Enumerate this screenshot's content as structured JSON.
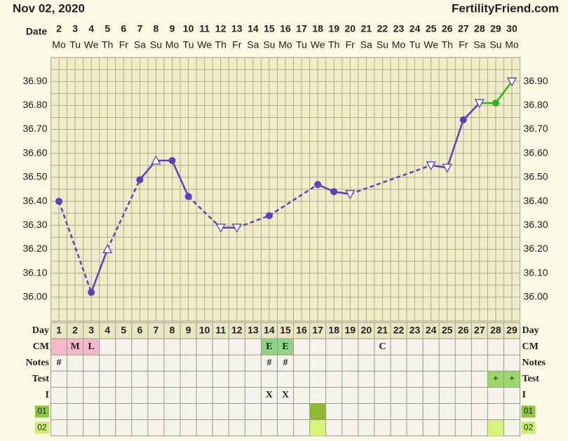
{
  "header": {
    "date": "Nov 02, 2020",
    "site": "FertilityFriend.com"
  },
  "chart_data": {
    "type": "line",
    "x_label": "Date",
    "categories": [
      "2",
      "3",
      "4",
      "5",
      "6",
      "7",
      "8",
      "9",
      "10",
      "11",
      "12",
      "13",
      "14",
      "15",
      "16",
      "17",
      "18",
      "19",
      "20",
      "21",
      "22",
      "23",
      "24",
      "25",
      "26",
      "27",
      "28",
      "29",
      "30"
    ],
    "weekdays": [
      "Mo",
      "Tu",
      "We",
      "Th",
      "Fr",
      "Sa",
      "Su",
      "Mo",
      "Tu",
      "We",
      "Th",
      "Fr",
      "Sa",
      "Su",
      "Mo",
      "Tu",
      "We",
      "Th",
      "Fr",
      "Sa",
      "Su",
      "Mo",
      "Tu",
      "We",
      "Th",
      "Fr",
      "Sa",
      "Su",
      "Mo"
    ],
    "ylim": [
      35.9,
      37.0
    ],
    "yticks": [
      {
        "value": 36.0,
        "label": "36.00"
      },
      {
        "value": 36.1,
        "label": "36.10"
      },
      {
        "value": 36.2,
        "label": "36.20"
      },
      {
        "value": 36.3,
        "label": "36.30"
      },
      {
        "value": 36.4,
        "label": "36.40"
      },
      {
        "value": 36.5,
        "label": "36.50"
      },
      {
        "value": 36.6,
        "label": "36.60"
      },
      {
        "value": 36.7,
        "label": "36.70"
      },
      {
        "value": 36.8,
        "label": "36.80"
      },
      {
        "value": 36.9,
        "label": "36.90"
      }
    ],
    "grid": true,
    "series": [
      {
        "color": "#5b3fc4",
        "values": [
          36.4,
          null,
          36.02,
          36.2,
          null,
          36.49,
          36.57,
          36.57,
          36.42,
          null,
          36.29,
          36.29,
          null,
          36.34,
          null,
          null,
          36.47,
          36.44,
          36.43,
          null,
          null,
          null,
          null,
          36.55,
          36.54,
          36.74,
          36.81,
          36.81,
          36.9
        ],
        "markers": [
          "circle",
          null,
          "circle",
          "triangle-up",
          null,
          "circle",
          "triangle-up",
          "circle",
          "circle",
          null,
          "triangle-down",
          "triangle-down",
          null,
          "circle",
          null,
          null,
          "circle",
          "circle",
          "triangle-down",
          null,
          null,
          null,
          null,
          "triangle-down",
          "triangle-down",
          "circle",
          "triangle-down",
          "circle",
          "triangle-down"
        ],
        "point_colors": [
          "#5b3fc4",
          null,
          "#5b3fc4",
          "#5b3fc4",
          null,
          "#5b3fc4",
          "#5b3fc4",
          "#5b3fc4",
          "#5b3fc4",
          null,
          "#5b3fc4",
          "#5b3fc4",
          null,
          "#5b3fc4",
          null,
          null,
          "#5b3fc4",
          "#5b3fc4",
          "#5b3fc4",
          null,
          null,
          null,
          null,
          "#5b3fc4",
          "#5b3fc4",
          "#5b3fc4",
          "#5b3fc4",
          "#2db51e",
          "#5b3fc4"
        ]
      }
    ]
  },
  "table": {
    "rows": [
      {
        "label": "Day",
        "cells": [
          1,
          2,
          3,
          4,
          5,
          6,
          7,
          8,
          9,
          10,
          11,
          12,
          13,
          14,
          15,
          16,
          17,
          18,
          19,
          20,
          21,
          22,
          23,
          24,
          25,
          26,
          27,
          28,
          29
        ]
      },
      {
        "label": "CM",
        "cells": [
          null,
          "M",
          "L",
          null,
          null,
          null,
          null,
          null,
          null,
          null,
          null,
          null,
          null,
          "E",
          "E",
          null,
          null,
          null,
          null,
          null,
          "C",
          null,
          null,
          null,
          null,
          null,
          null,
          null,
          null
        ],
        "fills": [
          "#f4b9cc",
          "#f4b9cc",
          "#f4b9cc",
          null,
          null,
          null,
          null,
          null,
          null,
          null,
          null,
          null,
          null,
          "#8fd28a",
          "#8fd28a",
          null,
          null,
          null,
          null,
          null,
          null,
          null,
          null,
          null,
          null,
          null,
          null,
          null,
          null
        ]
      },
      {
        "label": "Notes",
        "cells": [
          "#",
          null,
          null,
          null,
          null,
          null,
          null,
          null,
          null,
          null,
          null,
          null,
          null,
          "#",
          "#",
          null,
          null,
          null,
          null,
          null,
          null,
          null,
          null,
          null,
          null,
          null,
          null,
          null,
          null
        ]
      },
      {
        "label": "Test",
        "cells": [
          null,
          null,
          null,
          null,
          null,
          null,
          null,
          null,
          null,
          null,
          null,
          null,
          null,
          null,
          null,
          null,
          null,
          null,
          null,
          null,
          null,
          null,
          null,
          null,
          null,
          null,
          null,
          "+",
          "+"
        ],
        "fills": [
          null,
          null,
          null,
          null,
          null,
          null,
          null,
          null,
          null,
          null,
          null,
          null,
          null,
          null,
          null,
          null,
          null,
          null,
          null,
          null,
          null,
          null,
          null,
          null,
          null,
          null,
          null,
          "#9ad86a",
          "#9ad86a"
        ]
      },
      {
        "label": "I",
        "cells": [
          null,
          null,
          null,
          null,
          null,
          null,
          null,
          null,
          null,
          null,
          null,
          null,
          null,
          "X",
          "X",
          null,
          null,
          null,
          null,
          null,
          null,
          null,
          null,
          null,
          null,
          null,
          null,
          null,
          null
        ]
      },
      {
        "label": "01",
        "badge": "#8dc63f",
        "cells": [],
        "fills": [
          null,
          null,
          null,
          null,
          null,
          null,
          null,
          null,
          null,
          null,
          null,
          null,
          null,
          null,
          null,
          null,
          "#8dbb2e",
          null,
          null,
          null,
          null,
          null,
          null,
          null,
          null,
          null,
          null,
          null,
          null
        ]
      },
      {
        "label": "02",
        "badge": "#c8ef6c",
        "cells": [],
        "fills": [
          null,
          null,
          null,
          null,
          null,
          null,
          null,
          null,
          null,
          null,
          null,
          null,
          null,
          null,
          null,
          null,
          "#d4f47a",
          null,
          null,
          null,
          null,
          null,
          null,
          null,
          null,
          null,
          null,
          "#d4f47a",
          null
        ]
      }
    ]
  }
}
